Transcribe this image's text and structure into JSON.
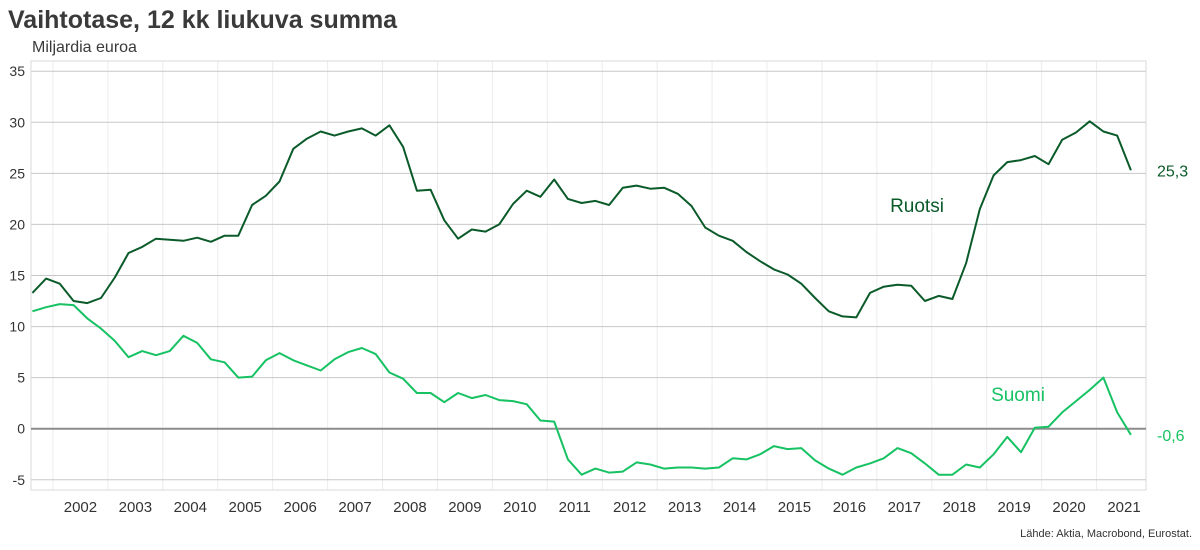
{
  "chart_data": {
    "type": "line",
    "title": "Vaihtotase, 12 kk liukuva summa",
    "ylabel": "Miljardia euroa",
    "source": "Lähde: Aktia, Macrobond, Eurostat.",
    "ylim": [
      -6,
      36
    ],
    "yticks": [
      -5,
      0,
      5,
      10,
      15,
      20,
      25,
      30,
      35
    ],
    "xlim": [
      2001.6,
      2021.9
    ],
    "xtick_labels": [
      "2002",
      "2003",
      "2004",
      "2005",
      "2006",
      "2007",
      "2008",
      "2009",
      "2010",
      "2011",
      "2012",
      "2013",
      "2014",
      "2015",
      "2016",
      "2017",
      "2018",
      "2019",
      "2020",
      "2021"
    ],
    "grid": true,
    "zero_line": true,
    "series": [
      {
        "name": "Ruotsi",
        "color": "#0b5b2a",
        "end_label": "25,3",
        "x": [
          2001.625,
          2001.875,
          2002.125,
          2002.375,
          2002.625,
          2002.875,
          2003.125,
          2003.375,
          2003.625,
          2003.875,
          2004.125,
          2004.375,
          2004.625,
          2004.875,
          2005.125,
          2005.375,
          2005.625,
          2005.875,
          2006.125,
          2006.375,
          2006.625,
          2006.875,
          2007.125,
          2007.375,
          2007.625,
          2007.875,
          2008.125,
          2008.375,
          2008.625,
          2008.875,
          2009.125,
          2009.375,
          2009.625,
          2009.875,
          2010.125,
          2010.375,
          2010.625,
          2010.875,
          2011.125,
          2011.375,
          2011.625,
          2011.875,
          2012.125,
          2012.375,
          2012.625,
          2012.875,
          2013.125,
          2013.375,
          2013.625,
          2013.875,
          2014.125,
          2014.375,
          2014.625,
          2014.875,
          2015.125,
          2015.375,
          2015.625,
          2015.875,
          2016.125,
          2016.375,
          2016.625,
          2016.875,
          2017.125,
          2017.375,
          2017.625,
          2017.875,
          2018.125,
          2018.375,
          2018.625,
          2018.875,
          2019.125,
          2019.375,
          2019.625,
          2019.875,
          2020.125,
          2020.375,
          2020.625,
          2020.875,
          2021.125,
          2021.375,
          2021.625
        ],
        "values": [
          13.3,
          14.7,
          14.2,
          12.5,
          12.3,
          12.8,
          14.8,
          17.2,
          17.8,
          18.6,
          18.5,
          18.4,
          18.7,
          18.3,
          18.9,
          18.9,
          21.9,
          22.8,
          24.2,
          27.4,
          28.4,
          29.1,
          28.7,
          29.1,
          29.4,
          28.7,
          29.7,
          27.6,
          23.3,
          23.4,
          20.4,
          18.6,
          19.5,
          19.3,
          20.0,
          22.0,
          23.3,
          22.7,
          24.4,
          22.5,
          22.1,
          22.3,
          21.9,
          23.6,
          23.8,
          23.5,
          23.6,
          23.0,
          21.8,
          19.7,
          18.9,
          18.4,
          17.3,
          16.4,
          15.6,
          15.1,
          14.2,
          12.8,
          11.5,
          11.0,
          10.9,
          13.3,
          13.9,
          14.1,
          14.0,
          12.5,
          13.0,
          12.7,
          16.2,
          21.5,
          24.8,
          26.1,
          26.3,
          26.7,
          25.9,
          28.3,
          29.0,
          30.1,
          29.1,
          28.7,
          25.3
        ]
      },
      {
        "name": "Suomi",
        "color": "#17c263",
        "end_label": "-0,6",
        "x": [
          2001.625,
          2001.875,
          2002.125,
          2002.375,
          2002.625,
          2002.875,
          2003.125,
          2003.375,
          2003.625,
          2003.875,
          2004.125,
          2004.375,
          2004.625,
          2004.875,
          2005.125,
          2005.375,
          2005.625,
          2005.875,
          2006.125,
          2006.375,
          2006.625,
          2006.875,
          2007.125,
          2007.375,
          2007.625,
          2007.875,
          2008.125,
          2008.375,
          2008.625,
          2008.875,
          2009.125,
          2009.375,
          2009.625,
          2009.875,
          2010.125,
          2010.375,
          2010.625,
          2010.875,
          2011.125,
          2011.375,
          2011.625,
          2011.875,
          2012.125,
          2012.375,
          2012.625,
          2012.875,
          2013.125,
          2013.375,
          2013.625,
          2013.875,
          2014.125,
          2014.375,
          2014.625,
          2014.875,
          2015.125,
          2015.375,
          2015.625,
          2015.875,
          2016.125,
          2016.375,
          2016.625,
          2016.875,
          2017.125,
          2017.375,
          2017.625,
          2017.875,
          2018.125,
          2018.375,
          2018.625,
          2018.875,
          2019.125,
          2019.375,
          2019.625,
          2019.875,
          2020.125,
          2020.375,
          2020.625,
          2020.875,
          2021.125,
          2021.375,
          2021.625
        ],
        "values": [
          11.5,
          11.9,
          12.2,
          12.1,
          10.8,
          9.8,
          8.6,
          7.0,
          7.6,
          7.2,
          7.6,
          9.1,
          8.4,
          6.8,
          6.5,
          5.0,
          5.1,
          6.7,
          7.4,
          6.7,
          6.2,
          5.7,
          6.8,
          7.5,
          7.9,
          7.3,
          5.5,
          4.9,
          3.5,
          3.5,
          2.6,
          3.5,
          3.0,
          3.3,
          2.8,
          2.7,
          2.4,
          0.8,
          0.7,
          -3.0,
          -4.5,
          -3.9,
          -4.3,
          -4.2,
          -3.3,
          -3.5,
          -3.9,
          -3.8,
          -3.8,
          -3.9,
          -3.8,
          -2.9,
          -3.0,
          -2.5,
          -1.7,
          -2.0,
          -1.9,
          -3.1,
          -3.9,
          -4.5,
          -3.8,
          -3.4,
          -2.9,
          -1.9,
          -2.4,
          -3.4,
          -4.5,
          -4.5,
          -3.5,
          -3.8,
          -2.5,
          -0.8,
          -2.3,
          0.1,
          0.2,
          1.6,
          2.7,
          3.8,
          5.0,
          1.6,
          -0.6
        ]
      }
    ],
    "annotations": [
      {
        "text": "Ruotsi",
        "series": "Ruotsi"
      },
      {
        "text": "Suomi",
        "series": "Suomi"
      }
    ]
  }
}
